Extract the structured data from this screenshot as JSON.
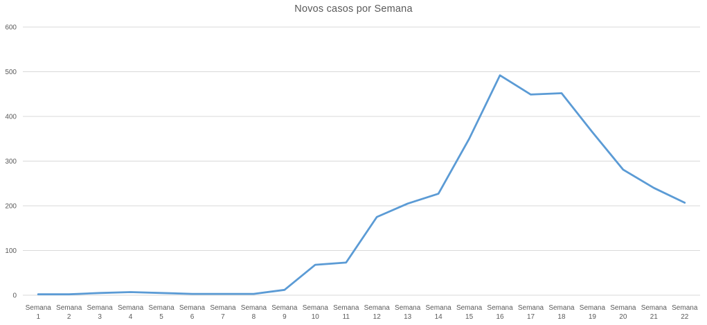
{
  "chart_data": {
    "type": "line",
    "title": "Novos casos por Semana",
    "categories": [
      "Semana 1",
      "Semana 2",
      "Semana 3",
      "Semana 4",
      "Semana 5",
      "Semana 6",
      "Semana 7",
      "Semana 8",
      "Semana 9",
      "Semana 10",
      "Semana 11",
      "Semana 12",
      "Semana 13",
      "Semana 14",
      "Semana 15",
      "Semana 16",
      "Semana 17",
      "Semana 18",
      "Semana 19",
      "Semana 20",
      "Semana 21",
      "Semana 22"
    ],
    "values": [
      2,
      2,
      5,
      7,
      5,
      3,
      3,
      3,
      12,
      68,
      73,
      175,
      205,
      227,
      350,
      492,
      449,
      452,
      365,
      281,
      240,
      207
    ],
    "xlabel": "",
    "ylabel": "",
    "ylim": [
      0,
      600
    ],
    "yticks": [
      0,
      100,
      200,
      300,
      400,
      500,
      600
    ],
    "grid": true,
    "legend_position": "none",
    "colors": {
      "line": "#5B9BD5",
      "gridline": "#D9D9D9",
      "tick_text": "#595959",
      "title_text": "#595959",
      "background": "#FFFFFF"
    }
  }
}
